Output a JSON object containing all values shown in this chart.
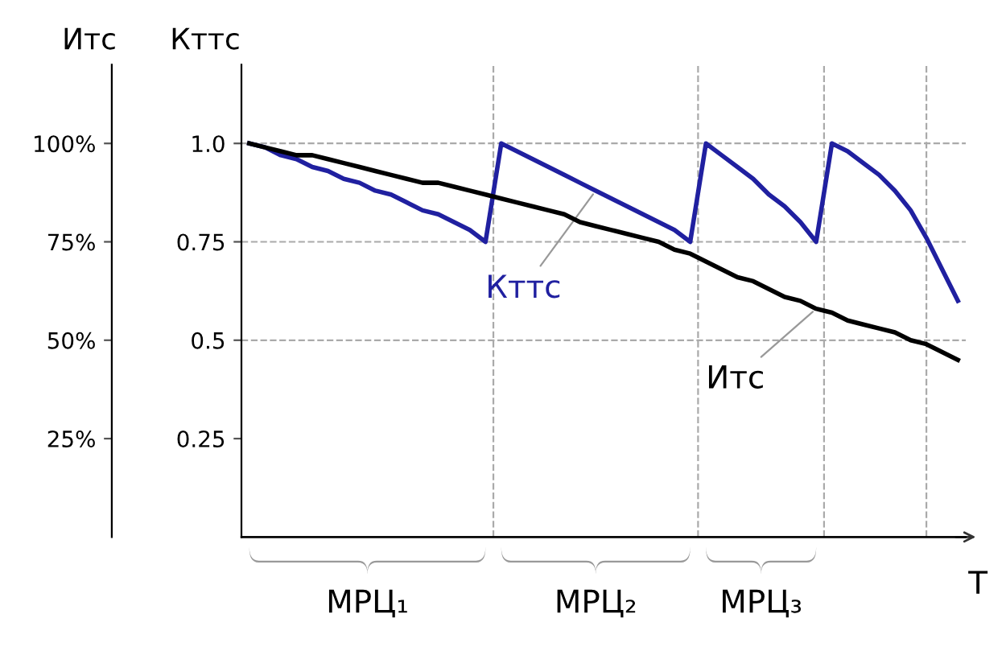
{
  "chart_data": {
    "type": "line",
    "xlabel": "T",
    "ylabel": "Кттс",
    "y2label": "Итс",
    "categories": [
      null,
      null,
      null,
      null,
      null,
      null,
      null,
      null,
      null,
      null,
      null,
      null,
      null,
      null,
      null,
      null,
      null,
      null,
      null,
      null,
      null,
      null,
      null,
      null,
      null,
      null,
      null,
      null,
      null,
      null,
      null,
      null,
      null,
      null,
      null,
      null,
      null,
      null,
      null,
      null,
      null,
      null,
      null,
      null,
      null,
      null
    ],
    "ylim": [
      0,
      1.2
    ],
    "y2lim": [
      0,
      120
    ],
    "yticks": [
      {
        "value": 0.25,
        "label": "0.25"
      },
      {
        "value": 0.5,
        "label": "0.5"
      },
      {
        "value": 0.75,
        "label": "0.75"
      },
      {
        "value": 1.0,
        "label": "1.0"
      }
    ],
    "y2ticks": [
      {
        "value": 25,
        "label": "25%"
      },
      {
        "value": 50,
        "label": "50%"
      },
      {
        "value": 75,
        "label": "75%"
      },
      {
        "value": 100,
        "label": "100%"
      }
    ],
    "tick_labels": "y",
    "series": [
      {
        "name": "Итс",
        "color": "#000000",
        "axis": "y2",
        "values": [
          100,
          99,
          98,
          97,
          97,
          96,
          95,
          94,
          93,
          92,
          91,
          90,
          90,
          89,
          88,
          87,
          86,
          85,
          84,
          83,
          82,
          80,
          79,
          78,
          77,
          76,
          75,
          73,
          72,
          70,
          68,
          66,
          65,
          63,
          61,
          60,
          58,
          57,
          55,
          54,
          53,
          52,
          50,
          49,
          47,
          45
        ]
      },
      {
        "name": "Кттс",
        "color": "#2020a0",
        "values": [
          1.0,
          0.99,
          0.97,
          0.96,
          0.94,
          0.93,
          0.91,
          0.9,
          0.88,
          0.87,
          0.85,
          0.83,
          0.82,
          0.8,
          0.78,
          0.75,
          1.0,
          0.98,
          0.96,
          0.94,
          0.92,
          0.9,
          0.88,
          0.86,
          0.84,
          0.82,
          0.8,
          0.78,
          0.75,
          1.0,
          0.97,
          0.94,
          0.91,
          0.87,
          0.84,
          0.8,
          0.75,
          1.0,
          0.98,
          0.95,
          0.92,
          0.88,
          0.83,
          0.76,
          0.68,
          0.6
        ]
      }
    ],
    "ref_lines": [
      {
        "axis": "y",
        "value": 1.0,
        "label": null,
        "color": "#aaaaaa",
        "line_style": "dashed"
      },
      {
        "axis": "y",
        "value": 0.75,
        "label": null,
        "color": "#aaaaaa",
        "line_style": "dashed"
      },
      {
        "axis": "y",
        "value": 0.5,
        "label": null,
        "color": "#aaaaaa",
        "line_style": "dashed"
      }
    ],
    "annotations": [
      "МРЦ₁",
      "МРЦ₂",
      "МРЦ₃"
    ],
    "grid": false,
    "line_style": "solid",
    "marker": "none"
  }
}
